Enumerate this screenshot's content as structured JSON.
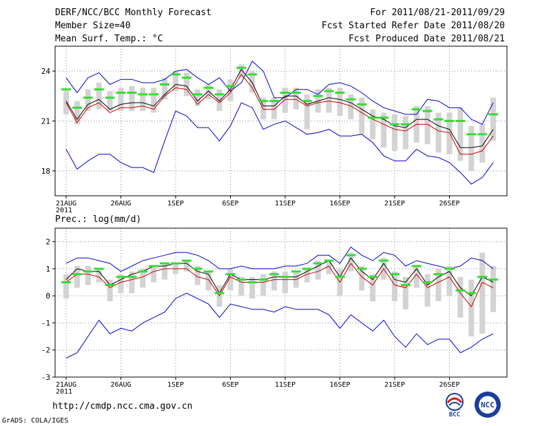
{
  "header": {
    "title": "DERF/NCC/BCC Monthly Forecast",
    "member_size": "Member Size=40",
    "variable": "Mean Surf. Temp.: °C",
    "period": "For 2011/08/21-2011/09/29",
    "started": "Fcst Started Refer Date 2011/08/20",
    "produced": "Fcst Produced Date 2011/08/21"
  },
  "footer": {
    "url": "http://cmdp.ncc.cma.gov.cn",
    "credit": "GrADS: COLA/IGES",
    "logo_left_text": "BCC",
    "logo_right_text": "NCC"
  },
  "colors": {
    "max_min": "#0000cc",
    "mean": "#000000",
    "median": "#cc0000",
    "box": "#d3d3d3",
    "marker": "#33dd33"
  },
  "chart_data": [
    {
      "type": "line",
      "title": "Mean Surf. Temp.: °C",
      "x_tick_labels": [
        "21AUG",
        "26AUG",
        "1SEP",
        "6SEP",
        "11SEP",
        "16SEP",
        "21SEP",
        "26SEP"
      ],
      "x_year_label": "2011",
      "ylim": [
        16.5,
        25.5
      ],
      "yticks": [
        18,
        21,
        24
      ],
      "ytick_labels": [
        "18",
        "21",
        "24"
      ],
      "grid": true,
      "series": [
        {
          "name": "max",
          "values": [
            23.6,
            22.7,
            23.6,
            23.9,
            23.2,
            23.5,
            23.5,
            23.3,
            23.3,
            23.5,
            24,
            24.1,
            23.6,
            23.2,
            23.6,
            22.8,
            23.3,
            24.6,
            24,
            22.4,
            22.4,
            22.9,
            22.9,
            22.6,
            23.2,
            23.3,
            23.1,
            22.7,
            22.2,
            21.8,
            21.6,
            21.4,
            21.4,
            22.3,
            22.2,
            21.8,
            21.8,
            21.1,
            20.8,
            22.1
          ]
        },
        {
          "name": "min",
          "values": [
            19.3,
            18.1,
            18.6,
            19,
            19,
            18.5,
            18.2,
            18.2,
            17.9,
            19.8,
            21.6,
            21.3,
            20.6,
            20.6,
            19.8,
            20.7,
            22.1,
            21.8,
            20.5,
            20.8,
            21,
            20.6,
            20.2,
            20.3,
            20.5,
            20.1,
            20.1,
            20.2,
            19.7,
            18.9,
            18.6,
            18.6,
            19.3,
            18.9,
            18.8,
            18.5,
            17.9,
            17.2,
            17.6,
            18.5
          ]
        },
        {
          "name": "mean",
          "values": [
            22.2,
            21.1,
            22,
            22.3,
            21.7,
            22,
            22.1,
            22.1,
            21.9,
            22.6,
            23.2,
            23.1,
            22.2,
            22.8,
            22.2,
            22.9,
            24.1,
            23.3,
            21.9,
            21.9,
            22.5,
            22.5,
            22,
            22.2,
            22.4,
            22.3,
            22.1,
            21.7,
            21.3,
            21.1,
            20.7,
            20.6,
            21.1,
            21.1,
            20.7,
            20.5,
            19.4,
            19.4,
            19.5,
            20.5
          ]
        },
        {
          "name": "median",
          "values": [
            22.1,
            20.9,
            21.8,
            22.1,
            21.5,
            21.8,
            21.8,
            21.9,
            21.7,
            22.5,
            23,
            22.9,
            22,
            22.6,
            22.1,
            22.7,
            23.8,
            23,
            21.7,
            21.7,
            22.3,
            22.3,
            21.9,
            22.1,
            22.2,
            22.1,
            21.9,
            21.5,
            21.1,
            20.8,
            20.5,
            20.4,
            20.8,
            20.8,
            20.4,
            20.3,
            19,
            19,
            19.2,
            20.1
          ]
        },
        {
          "name": "observed",
          "values": [
            22.9,
            21.8,
            22.4,
            22.9,
            22.4,
            22.7,
            22.7,
            22.6,
            22.6,
            23.2,
            23.8,
            23.6,
            22.6,
            23,
            22.6,
            23.1,
            24.2,
            23.8,
            22.2,
            22.2,
            22.7,
            22.7,
            22.2,
            22.5,
            22.8,
            22.7,
            22.3,
            22,
            21.2,
            21.2,
            20.8,
            20.8,
            21.7,
            21.6,
            21.1,
            21,
            21,
            20.2,
            20.2,
            21.4
          ]
        },
        {
          "name": "box_high",
          "values": [
            22.8,
            22.2,
            22.9,
            23.3,
            22.8,
            23,
            23.1,
            23,
            23,
            23.6,
            24,
            23.9,
            22.9,
            23.2,
            22.9,
            23.5,
            24.4,
            24,
            22.4,
            22.4,
            23,
            23,
            22.6,
            22.9,
            23,
            23,
            22.6,
            22.4,
            21.7,
            21.5,
            21.4,
            21.3,
            21.9,
            21.9,
            21.5,
            21.5,
            21.8,
            20.7,
            20.8,
            22.4
          ]
        },
        {
          "name": "box_low",
          "values": [
            21.4,
            20.8,
            21.6,
            21.7,
            21.6,
            21.6,
            21.6,
            21.6,
            21.5,
            22.3,
            22.8,
            22.5,
            21.9,
            22.3,
            21.6,
            22.2,
            23.6,
            22.7,
            21.1,
            21.1,
            21.5,
            21.7,
            20.5,
            21.5,
            21.5,
            21.3,
            21.1,
            20.2,
            19.9,
            19.4,
            19.2,
            19.3,
            19.7,
            19.6,
            19.1,
            19,
            18.6,
            18,
            18.5,
            19.8
          ]
        }
      ]
    },
    {
      "type": "line",
      "title": "Prec.: log(mm/d)",
      "x_tick_labels": [
        "21AUG",
        "26AUG",
        "1SEP",
        "6SEP",
        "11SEP",
        "16SEP",
        "21SEP",
        "26SEP"
      ],
      "x_year_label": "2011",
      "ylim": [
        -3,
        2.5
      ],
      "yticks": [
        -3,
        -2,
        -1,
        0,
        1,
        2
      ],
      "ytick_labels": [
        "-3",
        "-2",
        "-1",
        "0",
        "1",
        "2"
      ],
      "grid": true,
      "series": [
        {
          "name": "max",
          "values": [
            1.2,
            1.4,
            1.4,
            1.3,
            1.2,
            0.9,
            1.1,
            1.3,
            1.4,
            1.5,
            1.6,
            1.6,
            1.5,
            1.3,
            1,
            1,
            1.1,
            1,
            1,
            1,
            1.1,
            1.1,
            1.2,
            1.5,
            1.5,
            1.2,
            1.8,
            1.5,
            1.3,
            1.6,
            1.5,
            1.1,
            1.3,
            1.2,
            1.1,
            1,
            1.1,
            1.4,
            1.3,
            1
          ]
        },
        {
          "name": "min",
          "values": [
            -2.3,
            -2.1,
            -1.5,
            -0.9,
            -1.4,
            -1.2,
            -1.3,
            -1,
            -0.8,
            -0.6,
            -0.1,
            0.1,
            -0.1,
            -0.3,
            -0.8,
            -0.3,
            -0.4,
            -0.5,
            -0.5,
            -0.6,
            -0.4,
            -0.5,
            -0.5,
            -0.5,
            -0.7,
            -1.2,
            -0.7,
            -1,
            -1.3,
            -0.9,
            -1.5,
            -1.9,
            -1.4,
            -1.8,
            -1.6,
            -1.6,
            -2.1,
            -1.9,
            -1.6,
            -1.4
          ]
        },
        {
          "name": "mean",
          "values": [
            0.6,
            1,
            0.9,
            0.9,
            0.4,
            0.6,
            0.8,
            0.9,
            1.1,
            1.1,
            1.2,
            1.2,
            0.9,
            0.8,
            0.1,
            0.8,
            0.6,
            0.6,
            0.6,
            0.7,
            0.7,
            0.7,
            0.9,
            1.1,
            1.3,
            0.7,
            1.4,
            0.9,
            0.6,
            1.2,
            0.6,
            0.5,
            1,
            0.4,
            0.7,
            0.9,
            0.3,
            0,
            0.7,
            0.5
          ]
        },
        {
          "name": "median",
          "values": [
            0.5,
            0.8,
            0.8,
            0.7,
            0.3,
            0.5,
            0.6,
            0.7,
            0.9,
            1,
            1,
            1,
            0.7,
            0.6,
            0,
            0.7,
            0.5,
            0.5,
            0.5,
            0.6,
            0.6,
            0.6,
            0.8,
            0.9,
            1.1,
            0.5,
            1.2,
            0.7,
            0.4,
            1,
            0.4,
            0.3,
            0.8,
            0.3,
            0.5,
            0.7,
            0.1,
            -0.4,
            0.5,
            0.3
          ]
        },
        {
          "name": "observed",
          "values": [
            0.5,
            0.8,
            0.9,
            1,
            0.4,
            0.7,
            0.7,
            0.9,
            1.1,
            1.2,
            1.2,
            1.3,
            1,
            0.9,
            0.1,
            0.8,
            0.6,
            0.5,
            0.6,
            0.8,
            0.7,
            0.9,
            1,
            1.2,
            1.3,
            0.7,
            1.5,
            1,
            0.7,
            1.3,
            0.8,
            0.4,
            1.1,
            0.5,
            0.8,
            1,
            0.2,
            0.1,
            0.7,
            0.6
          ]
        },
        {
          "name": "box_high",
          "values": [
            0.8,
            1.1,
            1.1,
            1,
            0.6,
            0.8,
            0.9,
            1,
            1.1,
            1.2,
            1.2,
            1.3,
            1.1,
            0.9,
            0.4,
            1,
            0.7,
            0.7,
            0.8,
            0.9,
            0.9,
            0.9,
            1,
            1.3,
            1.3,
            1,
            1.6,
            1.1,
            0.8,
            1.4,
            0.9,
            0.7,
            1.1,
            0.8,
            1,
            1.1,
            0.7,
            0.6,
            1.6,
            1.1
          ]
        },
        {
          "name": "box_low",
          "values": [
            -0.1,
            0.3,
            0.4,
            0.5,
            -0.2,
            0.1,
            0.1,
            0.3,
            0.5,
            0.6,
            0.8,
            0.9,
            0.4,
            0.2,
            -0.4,
            0.2,
            0,
            -0.1,
            0,
            0.2,
            0.1,
            0.3,
            0.5,
            0.6,
            0.8,
            0,
            0.9,
            0.2,
            -0.2,
            0.6,
            -0.2,
            -0.5,
            0.3,
            -0.4,
            -0.2,
            0,
            -0.8,
            -1.5,
            -1.4,
            -0.6
          ]
        }
      ]
    }
  ]
}
